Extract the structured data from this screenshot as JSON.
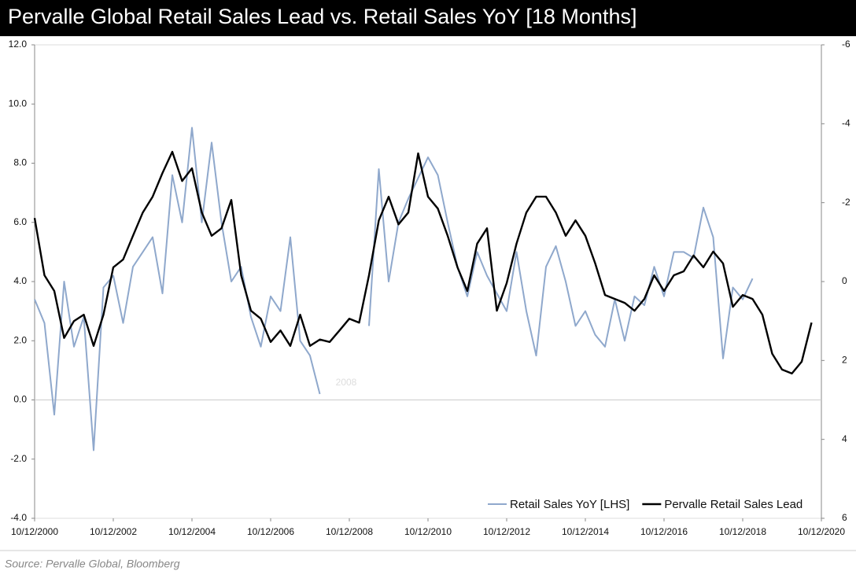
{
  "chart_data": {
    "type": "line",
    "title": "Pervalle Global Retail Sales Lead vs. Retail Sales YoY [18 Months]",
    "source": "Source: Pervalle Global, Bloomberg",
    "annotation": "2008",
    "x": [
      "10/12/2000",
      "01/12/2001",
      "04/12/2001",
      "07/12/2001",
      "10/12/2001",
      "01/12/2002",
      "04/12/2002",
      "07/12/2002",
      "10/12/2002",
      "01/12/2003",
      "04/12/2003",
      "07/12/2003",
      "10/12/2003",
      "01/12/2004",
      "04/12/2004",
      "07/12/2004",
      "10/12/2004",
      "01/12/2005",
      "04/12/2005",
      "07/12/2005",
      "10/12/2005",
      "01/12/2006",
      "04/12/2006",
      "07/12/2006",
      "10/12/2006",
      "01/12/2007",
      "04/12/2007",
      "07/12/2007",
      "10/12/2007",
      "01/12/2008",
      "04/12/2008",
      "07/12/2008",
      "10/12/2008",
      "01/12/2009",
      "04/12/2009",
      "07/12/2009",
      "10/12/2009",
      "01/12/2010",
      "04/12/2010",
      "07/12/2010",
      "10/12/2010",
      "01/12/2011",
      "04/12/2011",
      "07/12/2011",
      "10/12/2011",
      "01/12/2012",
      "04/12/2012",
      "07/12/2012",
      "10/12/2012",
      "01/12/2013",
      "04/12/2013",
      "07/12/2013",
      "10/12/2013",
      "01/12/2014",
      "04/12/2014",
      "07/12/2014",
      "10/12/2014",
      "01/12/2015",
      "04/12/2015",
      "07/12/2015",
      "10/12/2015",
      "01/12/2016",
      "04/12/2016",
      "07/12/2016",
      "10/12/2016",
      "01/12/2017",
      "04/12/2017",
      "07/12/2017",
      "10/12/2017",
      "01/12/2018",
      "04/12/2018",
      "07/12/2018",
      "10/12/2018",
      "01/12/2019",
      "04/12/2019",
      "07/12/2019",
      "10/12/2019",
      "01/12/2020",
      "04/12/2020",
      "07/12/2020"
    ],
    "series": [
      {
        "name": "Retail Sales YoY [LHS]",
        "color": "#8fa8cc",
        "axis": "y",
        "values": [
          3.4,
          2.6,
          -0.5,
          4.0,
          1.8,
          2.8,
          -1.7,
          3.8,
          4.2,
          2.6,
          4.5,
          5.0,
          5.5,
          3.6,
          7.6,
          6.0,
          9.2,
          6.0,
          8.7,
          6.0,
          4.0,
          4.5,
          2.8,
          1.8,
          3.5,
          3.0,
          5.5,
          2.0,
          1.5,
          0.2,
          null,
          null,
          null,
          null,
          2.5,
          7.8,
          4.0,
          6.0,
          6.8,
          7.5,
          8.2,
          7.6,
          6.0,
          4.5,
          3.5,
          5.0,
          4.2,
          3.6,
          3.0,
          5.0,
          3.0,
          1.5,
          4.5,
          5.2,
          4.0,
          2.5,
          3.0,
          2.2,
          1.8,
          3.4,
          2.0,
          3.5,
          3.2,
          4.5,
          3.5,
          5.0,
          5.0,
          4.8,
          6.5,
          5.5,
          1.4,
          3.8,
          3.4,
          4.1,
          null,
          null,
          null,
          null,
          null,
          null
        ]
      },
      {
        "name": "Pervalle Retail Sales Lead",
        "color": "#000000",
        "axis": "y2",
        "values": [
          -1.61,
          -0.16,
          0.24,
          1.43,
          1.0,
          0.84,
          1.63,
          0.84,
          -0.36,
          -0.56,
          -1.16,
          -1.75,
          -2.15,
          -2.75,
          -3.29,
          -2.55,
          -2.87,
          -1.75,
          -1.16,
          -1.35,
          -2.07,
          -0.16,
          0.74,
          0.94,
          1.53,
          1.24,
          1.63,
          0.84,
          1.63,
          1.47,
          1.53,
          1.24,
          0.94,
          1.04,
          -0.16,
          -1.55,
          -2.15,
          -1.45,
          -1.75,
          -3.25,
          -2.15,
          -1.85,
          -1.16,
          -0.36,
          0.24,
          -0.96,
          -1.35,
          0.74,
          0.04,
          -0.96,
          -1.75,
          -2.15,
          -2.15,
          -1.75,
          -1.16,
          -1.55,
          -1.16,
          -0.46,
          0.34,
          0.44,
          0.54,
          0.74,
          0.44,
          -0.16,
          0.24,
          -0.16,
          -0.26,
          -0.66,
          -0.36,
          -0.76,
          -0.46,
          0.64,
          0.34,
          0.44,
          0.84,
          1.83,
          2.23,
          2.33,
          2.03,
          1.04
        ]
      }
    ],
    "xlim": [
      "10/12/2000",
      "10/12/2020"
    ],
    "xticks": [
      "10/12/2000",
      "10/12/2002",
      "10/12/2004",
      "10/12/2006",
      "10/12/2008",
      "10/12/2010",
      "10/12/2012",
      "10/12/2014",
      "10/12/2016",
      "10/12/2018",
      "10/12/2020"
    ],
    "ylim": [
      -4,
      12
    ],
    "yticks": [
      {
        "value": -4,
        "label": "-4.0"
      },
      {
        "value": -2,
        "label": "-2.0"
      },
      {
        "value": 0,
        "label": "0.0"
      },
      {
        "value": 2,
        "label": "2.0"
      },
      {
        "value": 4,
        "label": "4.0"
      },
      {
        "value": 6,
        "label": "6.0"
      },
      {
        "value": 8,
        "label": "8.0"
      },
      {
        "value": 10,
        "label": "10.0"
      },
      {
        "value": 12,
        "label": "12.0"
      }
    ],
    "y2lim": [
      6,
      -6
    ],
    "y2ticks": [
      -6,
      -4,
      -2,
      0,
      2,
      4,
      6
    ],
    "legend": "lower right"
  }
}
